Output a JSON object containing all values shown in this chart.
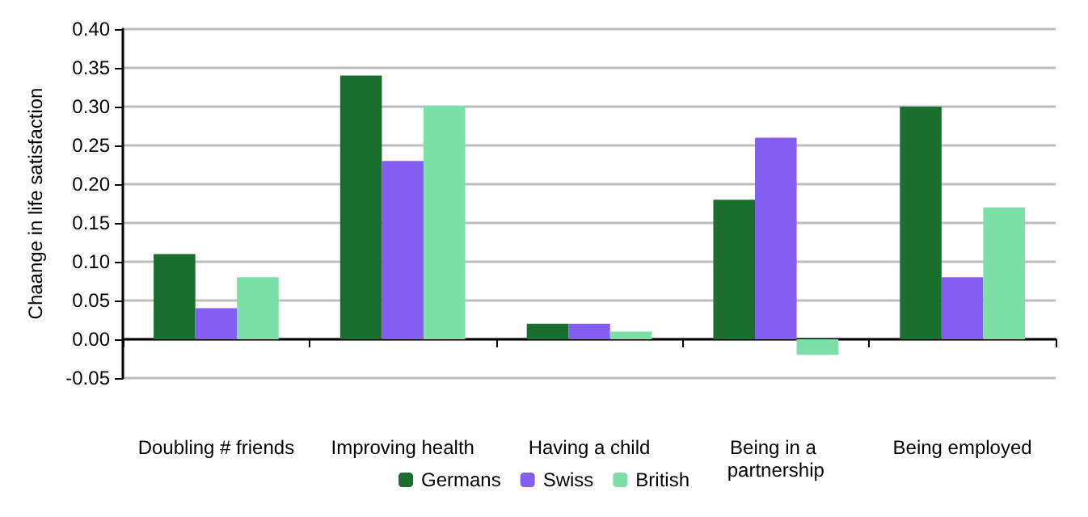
{
  "chart_data": {
    "type": "bar",
    "ylabel": "Chaange in life satisfaction",
    "categories": [
      "Doubling # friends",
      "Improving health",
      "Having a child",
      "Being in a partnership",
      "Being employed"
    ],
    "series": [
      {
        "name": "Germans",
        "color": "#1a6e2e",
        "values": [
          0.11,
          0.34,
          0.02,
          0.18,
          0.3
        ]
      },
      {
        "name": "Swiss",
        "color": "#845ef0",
        "values": [
          0.04,
          0.23,
          0.02,
          0.26,
          0.08
        ]
      },
      {
        "name": "British",
        "color": "#7ddfa8",
        "values": [
          0.08,
          0.3,
          0.01,
          -0.02,
          0.17
        ]
      }
    ],
    "ylim": [
      -0.05,
      0.4
    ],
    "yticks": [
      {
        "value": -0.05,
        "label": "-0.05"
      },
      {
        "value": 0,
        "label": "0.00"
      },
      {
        "value": 0.05,
        "label": "0.05"
      },
      {
        "value": 0.1,
        "label": "0.10"
      },
      {
        "value": 0.15,
        "label": "0.15"
      },
      {
        "value": 0.2,
        "label": "0.20"
      },
      {
        "value": 0.25,
        "label": "0.25"
      },
      {
        "value": 0.3,
        "label": "0.30"
      },
      {
        "value": 0.35,
        "label": "0.35"
      },
      {
        "value": 0.4,
        "label": "0.40"
      }
    ],
    "grid": "y",
    "legend": "bottom"
  }
}
